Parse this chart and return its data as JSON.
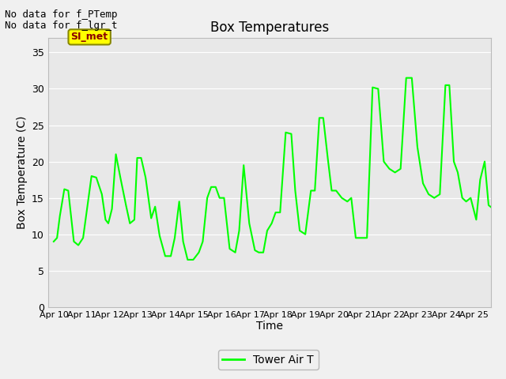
{
  "title": "Box Temperatures",
  "xlabel": "Time",
  "ylabel": "Box Temperature (C)",
  "no_data_text": [
    "No data for f_PTemp",
    "No data for f_lgr_t"
  ],
  "si_met_label": "SI_met",
  "legend_label": "Tower Air T",
  "line_color": "#00FF00",
  "bg_color": "#e8e8e8",
  "fig_color": "#f0f0f0",
  "ylim": [
    0,
    37
  ],
  "yticks": [
    0,
    5,
    10,
    15,
    20,
    25,
    30,
    35
  ],
  "xtick_labels": [
    "Apr 10",
    "Apr 11",
    "Apr 12",
    "Apr 13",
    "Apr 14",
    "Apr 15",
    "Apr 16",
    "Apr 17",
    "Apr 18",
    "Apr 19",
    "Apr 20",
    "Apr 21",
    "Apr 22",
    "Apr 23",
    "Apr 24",
    "Apr 25"
  ],
  "x_values": [
    0,
    0.12,
    0.22,
    0.38,
    0.52,
    0.72,
    0.88,
    1.05,
    1.35,
    1.52,
    1.72,
    1.85,
    1.95,
    2.08,
    2.22,
    2.38,
    2.58,
    2.72,
    2.88,
    2.98,
    3.12,
    3.28,
    3.48,
    3.62,
    3.78,
    3.98,
    4.18,
    4.32,
    4.48,
    4.62,
    4.78,
    4.98,
    5.18,
    5.32,
    5.48,
    5.62,
    5.78,
    5.92,
    6.08,
    6.28,
    6.48,
    6.62,
    6.78,
    6.98,
    7.18,
    7.32,
    7.48,
    7.62,
    7.78,
    7.92,
    8.08,
    8.28,
    8.48,
    8.62,
    8.78,
    8.98,
    9.18,
    9.32,
    9.48,
    9.62,
    9.78,
    9.92,
    10.08,
    10.28,
    10.48,
    10.62,
    10.78,
    10.98,
    11.18,
    11.38,
    11.58,
    11.78,
    11.98,
    12.18,
    12.38,
    12.58,
    12.78,
    12.98,
    13.18,
    13.38,
    13.58,
    13.78,
    13.98,
    14.12,
    14.28,
    14.42,
    14.58,
    14.72,
    14.88,
    14.98,
    15.08,
    15.22,
    15.38,
    15.52,
    15.68,
    15.82
  ],
  "y_values": [
    9.0,
    9.5,
    12.5,
    16.2,
    16.0,
    9.0,
    8.5,
    9.5,
    18.0,
    17.8,
    15.5,
    12.0,
    11.5,
    13.5,
    21.0,
    17.8,
    14.0,
    11.5,
    12.0,
    20.5,
    20.5,
    17.8,
    12.2,
    13.8,
    9.8,
    7.0,
    7.0,
    9.5,
    14.5,
    9.0,
    6.5,
    6.5,
    7.5,
    9.0,
    15.0,
    16.5,
    16.5,
    15.0,
    15.0,
    8.0,
    7.5,
    10.5,
    19.5,
    11.5,
    7.8,
    7.5,
    7.5,
    10.5,
    11.5,
    13.0,
    13.0,
    24.0,
    23.8,
    16.0,
    10.5,
    10.0,
    16.0,
    16.0,
    26.0,
    26.0,
    20.5,
    16.0,
    16.0,
    15.0,
    14.5,
    15.0,
    9.5,
    9.5,
    9.5,
    30.2,
    30.0,
    20.0,
    19.0,
    18.5,
    19.0,
    31.5,
    31.5,
    22.0,
    17.0,
    15.5,
    15.0,
    15.5,
    30.5,
    30.5,
    20.0,
    18.5,
    15.0,
    14.5,
    15.0,
    13.5,
    12.0,
    17.5,
    20.0,
    14.0,
    13.5,
    14.0
  ]
}
